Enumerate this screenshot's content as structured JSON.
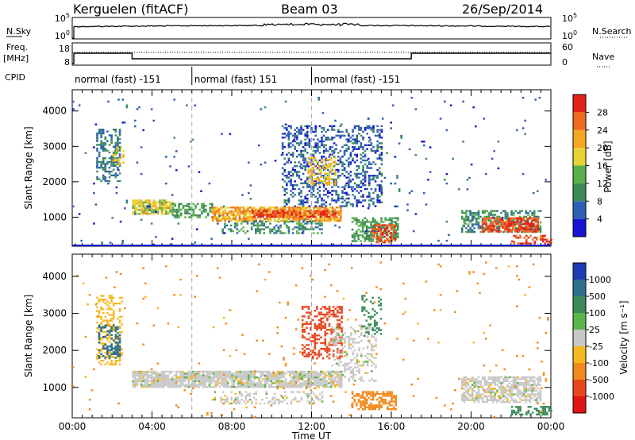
{
  "header": {
    "station": "Kerguelen (fitACF)",
    "beam": "Beam 03",
    "date": "26/Sep/2014"
  },
  "sky_panel": {
    "label": "N.Sky",
    "left_ticks": [
      "10^5",
      "10^0"
    ],
    "right_label": "N.Search",
    "right_ticks": [
      "10^5",
      "10^0"
    ]
  },
  "freq_panel": {
    "label": "Freq.\n[MHz]",
    "left_ticks": [
      "18",
      "8"
    ],
    "right_label": "Nave",
    "right_ticks": [
      "60",
      "0"
    ]
  },
  "cpid": {
    "label": "CPID",
    "segments": [
      {
        "start_hr": 0,
        "end_hr": 6,
        "text": "normal (fast) -151"
      },
      {
        "start_hr": 6,
        "end_hr": 12,
        "text": "normal (fast) 151"
      },
      {
        "start_hr": 12,
        "end_hr": 24,
        "text": "normal (fast) -151"
      }
    ]
  },
  "time_axis": {
    "label": "Time UT",
    "ticks": [
      "00:00",
      "04:00",
      "08:00",
      "12:00",
      "16:00",
      "20:00",
      "00:00"
    ]
  },
  "power_panel": {
    "ylabel": "Slant Range [km]",
    "yticks": [
      "1000",
      "2000",
      "3000",
      "4000"
    ],
    "colorbar_label": "Power [dB]",
    "colorbar_ticks": [
      "4",
      "8",
      "12",
      "16",
      "20",
      "24",
      "28"
    ],
    "colors": [
      "#1414d2",
      "#2d5fb4",
      "#3d8a5a",
      "#58b04a",
      "#e7d232",
      "#f5a623",
      "#ef6a1e",
      "#e2231a"
    ]
  },
  "velocity_panel": {
    "ylabel": "Slant Range [km]",
    "yticks": [
      "1000",
      "2000",
      "3000",
      "4000"
    ],
    "colorbar_label": "Velocity [m s⁻¹]",
    "colorbar_ticks": [
      "1000",
      "500",
      "100",
      "25",
      "-25",
      "-100",
      "-500",
      "-1000"
    ],
    "colors": [
      "#1e3ab4",
      "#2e6e8c",
      "#3a8a5a",
      "#5ab648",
      "#c8c8c8",
      "#f5b81e",
      "#f08a1e",
      "#e8461e",
      "#e01414"
    ]
  },
  "chart_data": {
    "type": "heatmap",
    "x_range_hr": [
      0,
      24
    ],
    "y_range_km": [
      180,
      4600
    ],
    "power_features": [
      {
        "t0": 1.2,
        "t1": 2.4,
        "r0": 2000,
        "r1": 3500,
        "p": 8,
        "d": 0.45
      },
      {
        "t0": 2.0,
        "t1": 2.6,
        "r0": 2500,
        "r1": 3000,
        "p": 18,
        "d": 0.35
      },
      {
        "t0": 3.0,
        "t1": 5.0,
        "r0": 1100,
        "r1": 1500,
        "p": 18,
        "d": 0.85
      },
      {
        "t0": 5.0,
        "t1": 7.0,
        "r0": 1000,
        "r1": 1400,
        "p": 12,
        "d": 0.6
      },
      {
        "t0": 7.0,
        "t1": 13.5,
        "r0": 900,
        "r1": 1300,
        "p": 22,
        "d": 0.8
      },
      {
        "t0": 9.0,
        "t1": 13.2,
        "r0": 1000,
        "r1": 1200,
        "p": 28,
        "d": 0.75
      },
      {
        "t0": 7.5,
        "t1": 12.5,
        "r0": 550,
        "r1": 900,
        "p": 10,
        "d": 0.45
      },
      {
        "t0": 10.5,
        "t1": 15.5,
        "r0": 1300,
        "r1": 3600,
        "p": 6,
        "d": 0.35
      },
      {
        "t0": 11.8,
        "t1": 13.2,
        "r0": 1900,
        "r1": 2700,
        "p": 20,
        "d": 0.4
      },
      {
        "t0": 14.0,
        "t1": 16.3,
        "r0": 300,
        "r1": 1000,
        "p": 12,
        "d": 0.6
      },
      {
        "t0": 15.0,
        "t1": 16.2,
        "r0": 300,
        "r1": 800,
        "p": 28,
        "d": 0.6
      },
      {
        "t0": 19.5,
        "t1": 23.5,
        "r0": 600,
        "r1": 1200,
        "p": 10,
        "d": 0.55
      },
      {
        "t0": 20.5,
        "t1": 23.3,
        "r0": 600,
        "r1": 1000,
        "p": 28,
        "d": 0.75
      },
      {
        "t0": 22.0,
        "t1": 24.0,
        "r0": 250,
        "r1": 500,
        "p": 28,
        "d": 0.5
      },
      {
        "t0": 0.0,
        "t1": 24.0,
        "r0": 200,
        "r1": 4400,
        "p": 6,
        "d": 0.012
      }
    ],
    "velocity_features": [
      {
        "t0": 1.2,
        "t1": 2.5,
        "r0": 1600,
        "r1": 3500,
        "v": -60,
        "d": 0.35
      },
      {
        "t0": 1.3,
        "t1": 2.4,
        "r0": 1800,
        "r1": 2700,
        "v": 700,
        "d": 0.35
      },
      {
        "t0": 3.0,
        "t1": 13.5,
        "r0": 1000,
        "r1": 1450,
        "v": 0,
        "d": 0.85
      },
      {
        "t0": 7.0,
        "t1": 12.5,
        "r0": 550,
        "r1": 900,
        "v": 0,
        "d": 0.3
      },
      {
        "t0": 11.5,
        "t1": 13.5,
        "r0": 1800,
        "r1": 3200,
        "v": -600,
        "d": 0.45
      },
      {
        "t0": 13.0,
        "t1": 15.2,
        "r0": 1200,
        "r1": 2700,
        "v": 0,
        "d": 0.3
      },
      {
        "t0": 14.0,
        "t1": 16.2,
        "r0": 400,
        "r1": 900,
        "v": -300,
        "d": 0.6
      },
      {
        "t0": 14.5,
        "t1": 15.5,
        "r0": 2400,
        "r1": 3500,
        "v": 200,
        "d": 0.25
      },
      {
        "t0": 19.5,
        "t1": 23.5,
        "r0": 600,
        "r1": 1300,
        "v": 0,
        "d": 0.7
      },
      {
        "t0": 22.0,
        "t1": 24.0,
        "r0": 250,
        "r1": 500,
        "v": 150,
        "d": 0.45
      },
      {
        "t0": 0.0,
        "t1": 24.0,
        "r0": 200,
        "r1": 4400,
        "v": -120,
        "d": 0.012
      }
    ]
  }
}
